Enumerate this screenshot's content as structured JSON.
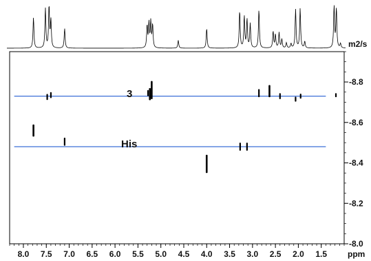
{
  "chart_data": {
    "type": "scatter",
    "title": "",
    "xlabel": "ppm",
    "ylabel": "m2/s",
    "xlim": [
      8.3,
      1.0
    ],
    "ylim": [
      8.0,
      8.95
    ],
    "x_reversed": true,
    "x_ticks": [
      "8.0",
      "7.5",
      "7.0",
      "6.5",
      "6.0",
      "5.5",
      "5.0",
      "4.5",
      "4.0",
      "3.5",
      "3.0",
      "2.5",
      "2.0",
      "1.5"
    ],
    "y_ticks": [
      "-8.0",
      "-8.2",
      "-8.4",
      "-8.6",
      "-8.8"
    ],
    "x_minor_step": 0.1,
    "y_minor_step": 0.05,
    "series": [
      {
        "name": "3",
        "line_y": 8.73,
        "line_x": [
          8.2,
          1.4
        ],
        "color": "#3a6fd8",
        "peaks": [
          {
            "x": 7.48,
            "y": 8.726,
            "h": 0.03
          },
          {
            "x": 7.4,
            "y": 8.735,
            "h": 0.03
          },
          {
            "x": 5.28,
            "y": 8.745,
            "h": 0.03
          },
          {
            "x": 5.24,
            "y": 8.74,
            "h": 0.06
          },
          {
            "x": 5.2,
            "y": 8.76,
            "h": 0.09
          },
          {
            "x": 2.86,
            "y": 8.745,
            "h": 0.04
          },
          {
            "x": 2.63,
            "y": 8.755,
            "h": 0.06
          },
          {
            "x": 2.4,
            "y": 8.73,
            "h": 0.03
          },
          {
            "x": 2.06,
            "y": 8.715,
            "h": 0.025
          },
          {
            "x": 1.95,
            "y": 8.73,
            "h": 0.025
          },
          {
            "x": 1.18,
            "y": 8.735,
            "h": 0.02
          }
        ]
      },
      {
        "name": "His",
        "line_y": 8.48,
        "line_x": [
          8.2,
          1.4
        ],
        "color": "#3a6fd8",
        "peaks": [
          {
            "x": 7.78,
            "y": 8.56,
            "h": 0.06
          },
          {
            "x": 7.1,
            "y": 8.505,
            "h": 0.04
          },
          {
            "x": 4.0,
            "y": 8.395,
            "h": 0.09
          },
          {
            "x": 3.27,
            "y": 8.48,
            "h": 0.04
          },
          {
            "x": 3.12,
            "y": 8.48,
            "h": 0.04
          }
        ]
      }
    ],
    "projection_1d": {
      "peaks": [
        {
          "x": 7.78,
          "h": 0.7
        },
        {
          "x": 7.52,
          "h": 0.9
        },
        {
          "x": 7.44,
          "h": 0.95
        },
        {
          "x": 7.4,
          "h": 0.62
        },
        {
          "x": 7.1,
          "h": 0.45
        },
        {
          "x": 5.3,
          "h": 0.5
        },
        {
          "x": 5.26,
          "h": 0.55
        },
        {
          "x": 5.22,
          "h": 0.58
        },
        {
          "x": 5.18,
          "h": 0.52
        },
        {
          "x": 4.62,
          "h": 0.18
        },
        {
          "x": 4.0,
          "h": 0.45
        },
        {
          "x": 3.28,
          "h": 0.85
        },
        {
          "x": 3.18,
          "h": 0.72
        },
        {
          "x": 3.12,
          "h": 0.65
        },
        {
          "x": 3.05,
          "h": 0.55
        },
        {
          "x": 2.86,
          "h": 0.88
        },
        {
          "x": 2.55,
          "h": 0.38
        },
        {
          "x": 2.5,
          "h": 0.3
        },
        {
          "x": 2.42,
          "h": 0.35
        },
        {
          "x": 2.36,
          "h": 0.2
        },
        {
          "x": 2.26,
          "h": 0.12
        },
        {
          "x": 2.16,
          "h": 0.1
        },
        {
          "x": 2.06,
          "h": 0.88
        },
        {
          "x": 1.96,
          "h": 0.9
        },
        {
          "x": 1.86,
          "h": 0.15
        },
        {
          "x": 1.22,
          "h": 0.95
        },
        {
          "x": 1.17,
          "h": 0.9
        },
        {
          "x": 1.08,
          "h": 0.1
        }
      ]
    }
  }
}
